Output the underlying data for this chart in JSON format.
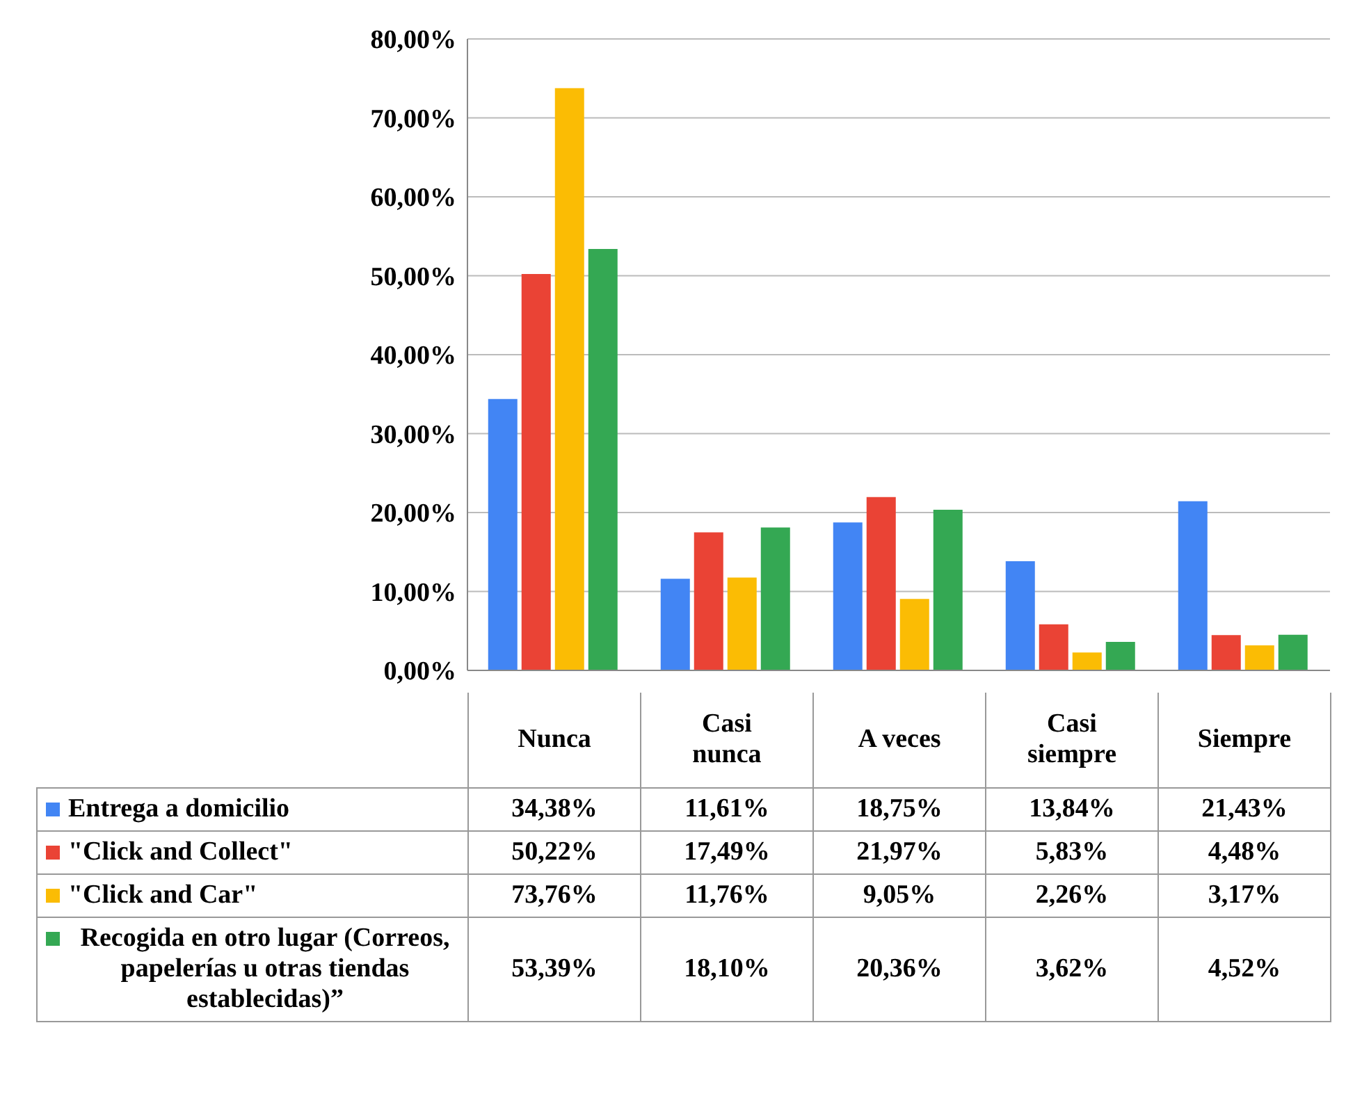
{
  "chart_data": {
    "type": "bar",
    "categories": [
      "Nunca",
      "Casi nunca",
      "A veces",
      "Casi siempre",
      "Siempre"
    ],
    "series": [
      {
        "name": "Entrega a domicilio",
        "color": "#4285f4",
        "values": [
          34.38,
          11.61,
          18.75,
          13.84,
          21.43
        ],
        "value_labels": [
          "34,38%",
          "11,61%",
          "18,75%",
          "13,84%",
          "21,43%"
        ]
      },
      {
        "name": "\"Click and Collect\"",
        "color": "#ea4335",
        "values": [
          50.22,
          17.49,
          21.97,
          5.83,
          4.48
        ],
        "value_labels": [
          "50,22%",
          "17,49%",
          "21,97%",
          "5,83%",
          "4,48%"
        ]
      },
      {
        "name": "\"Click and Car\"",
        "color": "#fbbc04",
        "values": [
          73.76,
          11.76,
          9.05,
          2.26,
          3.17
        ],
        "value_labels": [
          "73,76%",
          "11,76%",
          "9,05%",
          "2,26%",
          "3,17%"
        ]
      },
      {
        "name": "Recogida en otro lugar (Correos, papelerías u otras tiendas establecidas)”",
        "color": "#34a853",
        "values": [
          53.39,
          18.1,
          20.36,
          3.62,
          4.52
        ],
        "value_labels": [
          "53,39%",
          "18,10%",
          "20,36%",
          "3,62%",
          "4,52%"
        ]
      }
    ],
    "ylim": [
      0,
      80
    ],
    "yticks": [
      {
        "value": 0,
        "label": "0,00%"
      },
      {
        "value": 10,
        "label": "10,00%"
      },
      {
        "value": 20,
        "label": "20,00%"
      },
      {
        "value": 30,
        "label": "30,00%"
      },
      {
        "value": 40,
        "label": "40,00%"
      },
      {
        "value": 50,
        "label": "50,00%"
      },
      {
        "value": 60,
        "label": "60,00%"
      },
      {
        "value": 70,
        "label": "70,00%"
      },
      {
        "value": 80,
        "label": "80,00%"
      }
    ],
    "grid": "y",
    "legend": "bottom"
  }
}
